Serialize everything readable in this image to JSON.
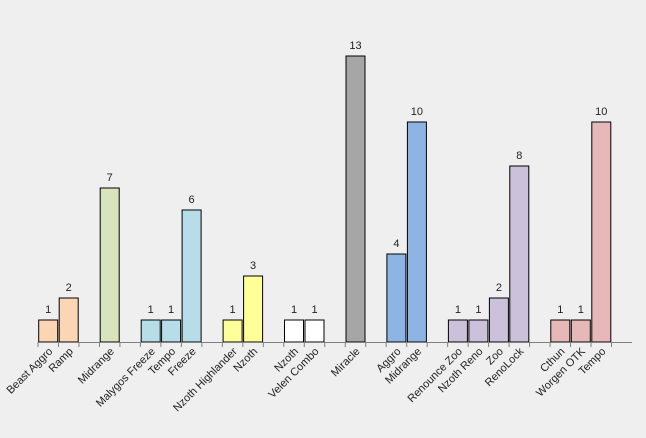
{
  "chart_data": {
    "type": "bar",
    "title": "",
    "xlabel": "",
    "ylabel": "",
    "ylim": [
      0,
      13
    ],
    "grid": false,
    "legend": "none",
    "data_labels": true,
    "groups": [
      {
        "color": "#fcd5b5",
        "bars": [
          {
            "category": "Beast Aggro",
            "value": 1
          },
          {
            "category": "Ramp",
            "value": 2
          }
        ]
      },
      {
        "color": "#d7e4bd",
        "bars": [
          {
            "category": "Midrange",
            "value": 7
          }
        ]
      },
      {
        "color": "#b7dee8",
        "bars": [
          {
            "category": "Malygos Freeze",
            "value": 1
          },
          {
            "category": "Tempo",
            "value": 1
          },
          {
            "category": "Freeze",
            "value": 6
          }
        ]
      },
      {
        "color": "#ffff99",
        "bars": [
          {
            "category": "Nzoth Highlander",
            "value": 1
          },
          {
            "category": "Nzoth",
            "value": 3
          }
        ]
      },
      {
        "color": "#ffffff",
        "bars": [
          {
            "category": "Nzoth",
            "value": 1
          },
          {
            "category": "Velen Combo",
            "value": 1
          }
        ]
      },
      {
        "color": "#a6a6a6",
        "bars": [
          {
            "category": "Miracle",
            "value": 13
          }
        ]
      },
      {
        "color": "#8eb4e3",
        "bars": [
          {
            "category": "Aggro",
            "value": 4
          },
          {
            "category": "Midrange",
            "value": 10
          }
        ]
      },
      {
        "color": "#ccc1da",
        "bars": [
          {
            "category": "Renounce Zoo",
            "value": 1
          },
          {
            "category": "Nzoth Reno",
            "value": 1
          },
          {
            "category": "Zoo",
            "value": 2
          },
          {
            "category": "RenoLock",
            "value": 8
          }
        ]
      },
      {
        "color": "#e6b9b8",
        "bars": [
          {
            "category": "Cthun",
            "value": 1
          },
          {
            "category": "Worgen OTK",
            "value": 1
          },
          {
            "category": "Tempo",
            "value": 10
          }
        ]
      }
    ]
  }
}
